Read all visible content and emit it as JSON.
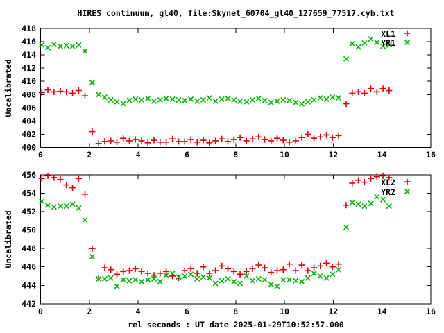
{
  "title": "HIRES continuum, gl40, file:Skynet_60704_gl40_127659_77517.cyb.txt",
  "xlabel": "rel seconds : UT date 2025-01-29T10:52:57.000",
  "colors": {
    "red": "#e00000",
    "green": "#00b400",
    "axis": "#000000",
    "background": "#ffffff"
  },
  "chart_data": [
    {
      "type": "scatter",
      "panel": "top",
      "ylabel": "Uncalibrated",
      "xlim": [
        0,
        16
      ],
      "ylim": [
        400,
        418
      ],
      "xticks": [
        0,
        2,
        4,
        6,
        8,
        10,
        12,
        14,
        16
      ],
      "yticks": [
        400,
        402,
        404,
        406,
        408,
        410,
        412,
        414,
        416,
        418
      ],
      "grid": false,
      "legend_position": "top-right-inside",
      "x": [
        0.05,
        0.3,
        0.55,
        0.81,
        1.06,
        1.31,
        1.56,
        1.82,
        2.12,
        2.38,
        2.63,
        2.88,
        3.13,
        3.39,
        3.64,
        3.89,
        4.14,
        4.4,
        4.65,
        4.9,
        5.15,
        5.41,
        5.66,
        5.91,
        6.16,
        6.42,
        6.67,
        6.92,
        7.17,
        7.43,
        7.68,
        7.93,
        8.18,
        8.44,
        8.69,
        8.94,
        9.19,
        9.45,
        9.7,
        9.95,
        10.2,
        10.46,
        10.71,
        10.96,
        11.21,
        11.47,
        11.72,
        11.97,
        12.22,
        12.53,
        12.78,
        13.03,
        13.28,
        13.54,
        13.79,
        14.04,
        14.29
      ],
      "series": [
        {
          "name": "XL1",
          "marker": "plus",
          "color": "#e00000",
          "values": [
            408.3,
            408.7,
            408.4,
            408.5,
            408.4,
            408.2,
            408.6,
            407.8,
            402.4,
            400.6,
            400.9,
            401.0,
            400.8,
            401.4,
            401.0,
            401.2,
            401.0,
            400.7,
            401.1,
            400.8,
            400.8,
            401.3,
            400.9,
            400.9,
            401.2,
            400.8,
            401.1,
            400.7,
            401.0,
            401.3,
            400.9,
            401.2,
            401.5,
            401.0,
            401.3,
            401.6,
            401.2,
            401.0,
            401.4,
            401.1,
            400.8,
            401.0,
            401.5,
            402.0,
            401.4,
            401.6,
            401.9,
            401.5,
            401.8,
            406.6,
            408.2,
            408.4,
            408.2,
            408.9,
            408.4,
            408.9,
            408.6
          ]
        },
        {
          "name": "YR1",
          "marker": "cross",
          "color": "#00b400",
          "values": [
            415.5,
            415.1,
            415.6,
            415.3,
            415.4,
            415.3,
            415.5,
            414.6,
            409.8,
            408.0,
            407.6,
            407.2,
            406.9,
            406.6,
            407.1,
            407.3,
            407.2,
            407.4,
            407.0,
            407.2,
            407.4,
            407.3,
            407.2,
            407.1,
            407.3,
            407.0,
            407.2,
            407.5,
            407.0,
            407.3,
            407.4,
            407.2,
            407.0,
            406.9,
            407.2,
            407.4,
            407.1,
            406.8,
            407.0,
            407.2,
            407.1,
            406.8,
            406.6,
            406.9,
            407.2,
            407.5,
            407.3,
            407.6,
            407.5,
            413.4,
            415.7,
            415.2,
            415.8,
            416.4,
            415.9,
            415.3,
            415.5
          ]
        }
      ]
    },
    {
      "type": "scatter",
      "panel": "bottom",
      "ylabel": "Uncalibrated",
      "xlim": [
        0,
        16
      ],
      "ylim": [
        442,
        456
      ],
      "xticks": [
        0,
        2,
        4,
        6,
        8,
        10,
        12,
        14,
        16
      ],
      "yticks": [
        442,
        444,
        446,
        448,
        450,
        452,
        454,
        456
      ],
      "grid": false,
      "legend_position": "top-right-inside",
      "x": [
        0.05,
        0.3,
        0.55,
        0.81,
        1.06,
        1.31,
        1.56,
        1.82,
        2.12,
        2.38,
        2.63,
        2.88,
        3.13,
        3.39,
        3.64,
        3.89,
        4.14,
        4.4,
        4.65,
        4.9,
        5.15,
        5.41,
        5.66,
        5.91,
        6.16,
        6.42,
        6.67,
        6.92,
        7.17,
        7.43,
        7.68,
        7.93,
        8.18,
        8.44,
        8.69,
        8.94,
        9.19,
        9.45,
        9.7,
        9.95,
        10.2,
        10.46,
        10.71,
        10.96,
        11.21,
        11.47,
        11.72,
        11.97,
        12.22,
        12.53,
        12.78,
        13.03,
        13.28,
        13.54,
        13.79,
        14.04,
        14.29
      ],
      "series": [
        {
          "name": "XL2",
          "marker": "plus",
          "color": "#e00000",
          "values": [
            455.6,
            455.9,
            455.7,
            455.5,
            454.9,
            454.6,
            455.6,
            453.9,
            448.0,
            444.8,
            445.9,
            445.7,
            445.2,
            445.5,
            445.6,
            445.8,
            445.5,
            445.3,
            445.1,
            445.3,
            445.5,
            445.0,
            444.8,
            445.6,
            445.8,
            445.3,
            446.0,
            445.3,
            445.6,
            446.1,
            445.8,
            445.5,
            445.2,
            445.5,
            445.8,
            446.2,
            445.9,
            445.4,
            445.6,
            445.7,
            446.3,
            445.6,
            446.2,
            445.6,
            445.9,
            446.1,
            446.4,
            446.0,
            446.3,
            452.7,
            455.1,
            455.4,
            455.2,
            455.6,
            455.8,
            455.9,
            455.7
          ]
        },
        {
          "name": "YR2",
          "marker": "cross",
          "color": "#00b400",
          "values": [
            453.1,
            452.7,
            452.5,
            452.6,
            452.6,
            452.8,
            452.4,
            451.1,
            447.1,
            444.7,
            444.7,
            444.8,
            443.9,
            444.6,
            444.5,
            444.6,
            444.4,
            444.6,
            444.7,
            444.4,
            445.1,
            445.3,
            444.9,
            445.0,
            445.2,
            444.7,
            444.9,
            444.8,
            444.2,
            444.5,
            444.7,
            444.4,
            444.2,
            445.0,
            444.5,
            444.7,
            444.6,
            444.1,
            443.9,
            444.6,
            444.6,
            444.5,
            444.4,
            444.8,
            445.3,
            445.0,
            444.8,
            445.2,
            445.7,
            450.3,
            453.0,
            452.8,
            452.6,
            452.9,
            453.6,
            453.3,
            452.6
          ]
        }
      ]
    }
  ]
}
